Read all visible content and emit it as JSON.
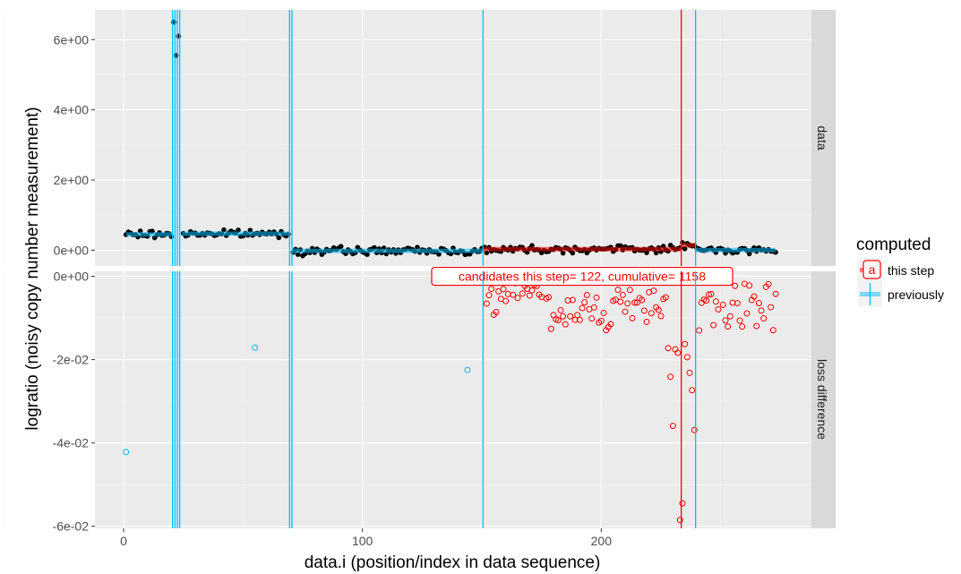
{
  "chart_data": {
    "type": "scatter",
    "title": "",
    "xlabel": "data.i (position/index in data sequence)",
    "ylabel": "logratio (noisy copy number measurement)",
    "xlim": [
      -12,
      288
    ],
    "x_ticks": [
      0,
      100,
      200
    ],
    "x_tick_labels": [
      "0",
      "100",
      "200"
    ],
    "legend": {
      "title": "computed",
      "placement": "right",
      "entries": [
        {
          "key": "this_step",
          "label": "this step",
          "color": "#ff0000",
          "glyph": "a"
        },
        {
          "key": "previously",
          "label": "previously",
          "color": "#00bfff"
        }
      ]
    },
    "colors": {
      "this_step": "#ff0000",
      "previously": "#00bfff",
      "data_points": "#000000",
      "panel_bg": "#ebebeb",
      "strip_bg": "#d9d9d9"
    },
    "panels": [
      {
        "name": "data",
        "strip_label": "data",
        "ylim": [
          -0.45,
          6.85
        ],
        "y_ticks": [
          0,
          2,
          4,
          6
        ],
        "y_tick_labels": [
          "0e+00",
          "2e+00",
          "4e+00",
          "6e+00"
        ],
        "outliers": [
          [
            21,
            6.5
          ],
          [
            22,
            5.55
          ],
          [
            23,
            6.1
          ]
        ],
        "segments_previously": [
          {
            "x0": 1,
            "x1": 20.5,
            "y": 0.45
          },
          {
            "x0": 24.5,
            "x1": 69.5,
            "y": 0.47
          },
          {
            "x0": 70.5,
            "x1": 150.5,
            "y": -0.02
          },
          {
            "x0": 239.5,
            "x1": 273,
            "y": 0.0
          }
        ],
        "segments_this_step": [
          {
            "x0": 150.5,
            "x1": 233.5,
            "y": 0.03
          },
          {
            "x0": 233.5,
            "x1": 239.5,
            "y": 0.14
          }
        ]
      },
      {
        "name": "loss difference",
        "strip_label": "loss difference",
        "ylim": [
          -0.0605,
          0.0012
        ],
        "y_ticks": [
          0,
          -0.02,
          -0.04,
          -0.06
        ],
        "y_tick_labels": [
          "0e+00",
          "-2e-02",
          "-4e-02",
          "-6e-02"
        ],
        "points_previously": [
          [
            1,
            -0.0422
          ],
          [
            55,
            -0.0171
          ],
          [
            144,
            -0.0225
          ]
        ],
        "annotation": {
          "text": "candidates this step= 122, cumulative= 1158",
          "x": 192,
          "y": 0.0
        }
      }
    ],
    "changepoints_previously": [
      20.5,
      21.5,
      22.5,
      23.5,
      69.5,
      70.5,
      150.5,
      239.5
    ],
    "changepoints_this_step": [
      233.5
    ]
  }
}
